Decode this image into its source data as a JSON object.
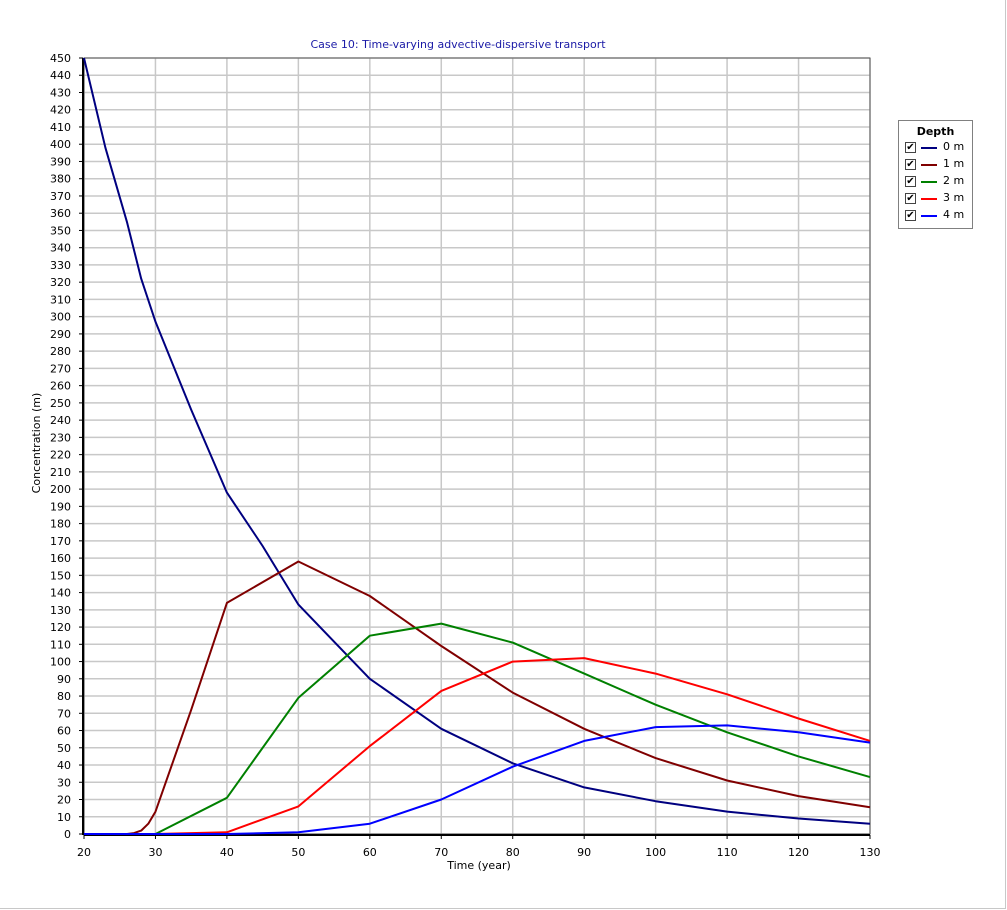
{
  "chart_data": {
    "type": "line",
    "title": "Case 10: Time-varying advective-dispersive transport",
    "xlabel": "Time (year)",
    "ylabel": "Concentration (m)",
    "xlim": [
      20,
      130
    ],
    "ylim": [
      0,
      450
    ],
    "x_ticks": [
      20,
      30,
      40,
      50,
      60,
      70,
      80,
      90,
      100,
      110,
      120,
      130
    ],
    "y_ticks": [
      0,
      10,
      20,
      30,
      40,
      50,
      60,
      70,
      80,
      90,
      100,
      110,
      120,
      130,
      140,
      150,
      160,
      170,
      180,
      190,
      200,
      210,
      220,
      230,
      240,
      250,
      260,
      270,
      280,
      290,
      300,
      310,
      320,
      330,
      340,
      350,
      360,
      370,
      380,
      390,
      400,
      410,
      420,
      430,
      440,
      450
    ],
    "grid": true,
    "legend_title": "Depth",
    "legend_position": "right",
    "series": [
      {
        "name": "0 m",
        "color": "#000080",
        "x": [
          20,
          23,
          26,
          28,
          30,
          35,
          40,
          45,
          50,
          60,
          70,
          80,
          90,
          100,
          110,
          120,
          130
        ],
        "y": [
          450,
          398,
          355,
          322,
          297,
          246,
          198,
          167,
          133,
          90,
          61,
          41,
          27,
          19,
          13,
          9,
          6
        ]
      },
      {
        "name": "1 m",
        "color": "#800000",
        "x": [
          20,
          26,
          27,
          28,
          29,
          30,
          35,
          40,
          50,
          60,
          70,
          80,
          90,
          100,
          110,
          120,
          130
        ],
        "y": [
          0,
          0,
          0.5,
          2,
          6,
          13,
          72,
          134,
          158,
          138,
          109,
          82,
          61,
          44,
          31,
          22,
          15.5
        ]
      },
      {
        "name": "2 m",
        "color": "#008000",
        "x": [
          20,
          30,
          40,
          50,
          60,
          70,
          80,
          90,
          100,
          110,
          120,
          130
        ],
        "y": [
          0,
          0,
          21,
          79,
          115,
          122,
          111,
          93,
          75,
          59,
          45,
          33
        ]
      },
      {
        "name": "3 m",
        "color": "#ff0000",
        "x": [
          20,
          30,
          40,
          50,
          60,
          70,
          80,
          90,
          100,
          110,
          120,
          130
        ],
        "y": [
          0,
          0,
          1,
          16,
          51,
          83,
          100,
          102,
          93,
          81,
          67,
          54
        ]
      },
      {
        "name": "4 m",
        "color": "#0000ff",
        "x": [
          20,
          30,
          40,
          50,
          60,
          70,
          80,
          90,
          100,
          110,
          120,
          130
        ],
        "y": [
          0,
          0,
          0,
          1,
          6,
          20,
          39,
          54,
          62,
          63,
          59,
          53
        ]
      }
    ],
    "legend_checked": [
      "✔",
      "✔",
      "✔",
      "✔",
      "✔"
    ]
  }
}
